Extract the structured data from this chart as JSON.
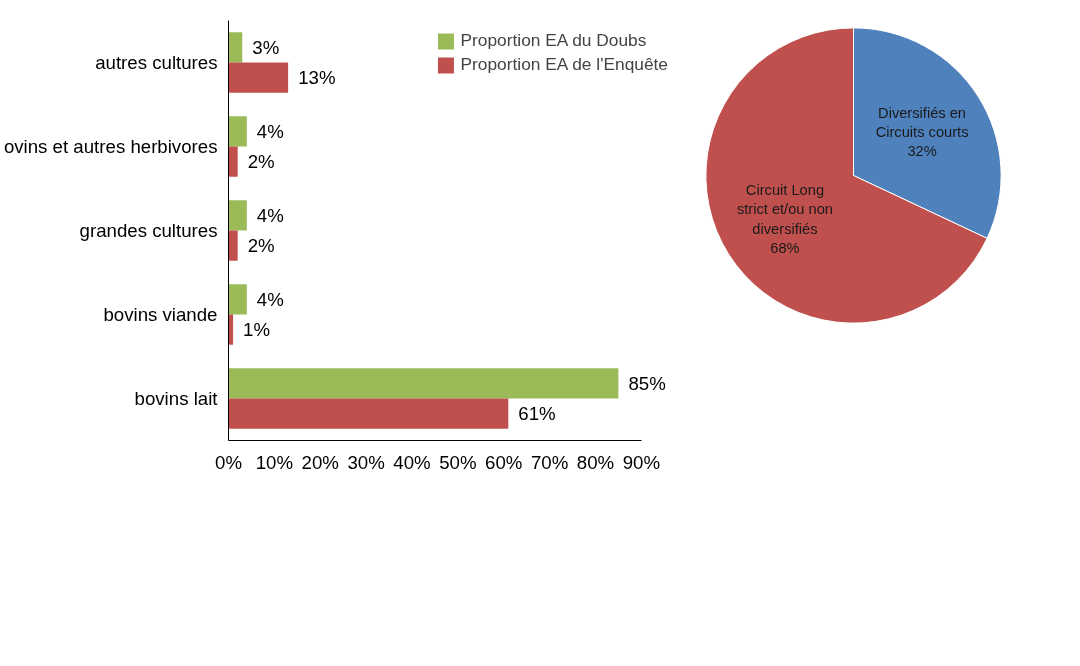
{
  "chart_data": [
    {
      "type": "bar",
      "orientation": "horizontal",
      "categories": [
        "autres cultures",
        "ovins et autres herbivores",
        "grandes cultures",
        "bovins viande",
        "bovins lait"
      ],
      "series": [
        {
          "name": "Proportion EA du Doubs",
          "color": "#9bbb59",
          "values": [
            3,
            4,
            4,
            4,
            85
          ],
          "value_labels": [
            "3%",
            "4%",
            "4%",
            "4%",
            "85%"
          ]
        },
        {
          "name": "Proportion EA de l'Enquête",
          "color": "#c0504d",
          "values": [
            13,
            2,
            2,
            1,
            61
          ],
          "value_labels": [
            "13%",
            "2%",
            "2%",
            "1%",
            "61%"
          ]
        }
      ],
      "xlim": [
        0,
        90
      ],
      "xticks": [
        {
          "value": 0,
          "label": "0%"
        },
        {
          "value": 10,
          "label": "10%"
        },
        {
          "value": 20,
          "label": "20%"
        },
        {
          "value": 30,
          "label": "30%"
        },
        {
          "value": 40,
          "label": "40%"
        },
        {
          "value": 50,
          "label": "50%"
        },
        {
          "value": 60,
          "label": "60%"
        },
        {
          "value": 70,
          "label": "70%"
        },
        {
          "value": 80,
          "label": "80%"
        },
        {
          "value": 90,
          "label": "90%"
        }
      ],
      "legend": "top right"
    },
    {
      "type": "pie",
      "categories": [
        "Diversifiés en Circuits courts",
        "Circuit Long strict et/ou non diversifiés"
      ],
      "values": [
        32,
        68
      ],
      "colors": [
        "#4f81bd",
        "#c0504d"
      ],
      "value_labels": [
        "32%",
        "68%"
      ]
    }
  ]
}
